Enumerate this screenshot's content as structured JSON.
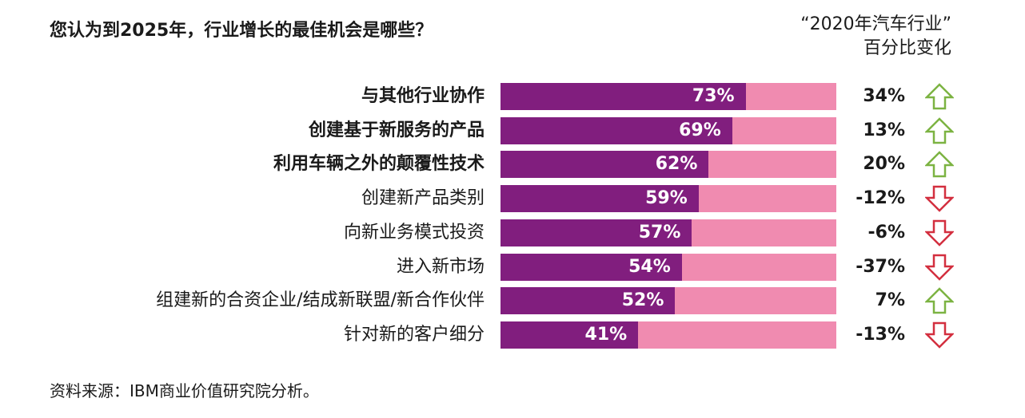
{
  "title": "您认为到2025年，行业增长的最佳机会是哪些？",
  "column_header": {
    "line1": "“2020年汽车行业”",
    "line2": "百分比变化"
  },
  "source": "资料来源：IBM商业价值研究院分析。",
  "colors": {
    "bar_fill": "#811e7e",
    "bar_track": "#f08bb0",
    "arrow_up": "#7cb342",
    "arrow_down": "#d32f3f"
  },
  "chart_data": {
    "type": "bar",
    "orientation": "horizontal",
    "title": "您认为到2025年，行业增长的最佳机会是哪些？",
    "xlim": [
      0,
      100
    ],
    "categories": [
      "与其他行业协作",
      "创建基于新服务的产品",
      "利用车辆之外的颠覆性技术",
      "创建新产品类别",
      "向新业务模式投资",
      "进入新市场",
      "组建新的合资企业/结成新联盟/新合作伙伴",
      "针对新的客户细分"
    ],
    "bold_categories": [
      true,
      true,
      true,
      false,
      false,
      false,
      false,
      false
    ],
    "values": [
      73,
      69,
      62,
      59,
      57,
      54,
      52,
      41
    ],
    "value_labels": [
      "73%",
      "69%",
      "62%",
      "59%",
      "57%",
      "54%",
      "52%",
      "41%"
    ],
    "change_header": "“2020年汽车行业” 百分比变化",
    "change_values": [
      34,
      13,
      20,
      -12,
      -6,
      -37,
      7,
      -13
    ],
    "change_labels": [
      "34%",
      "13%",
      "20%",
      "-12%",
      "-6%",
      "-37%",
      "7%",
      "-13%"
    ],
    "change_direction": [
      "up",
      "up",
      "up",
      "down",
      "down",
      "down",
      "up",
      "down"
    ]
  }
}
